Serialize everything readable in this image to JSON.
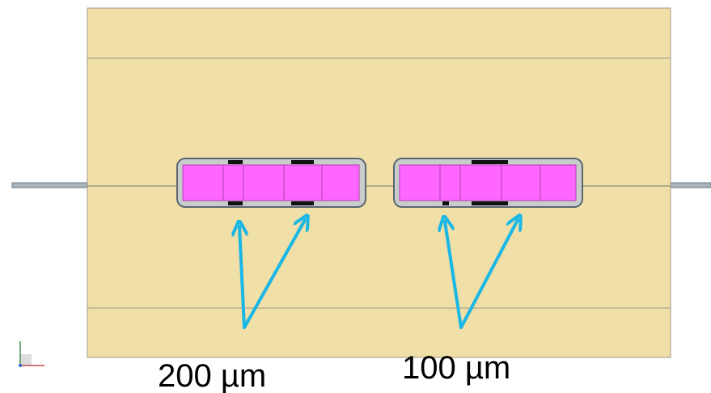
{
  "labels": [
    "200 µm",
    "100 µm"
  ]
}
